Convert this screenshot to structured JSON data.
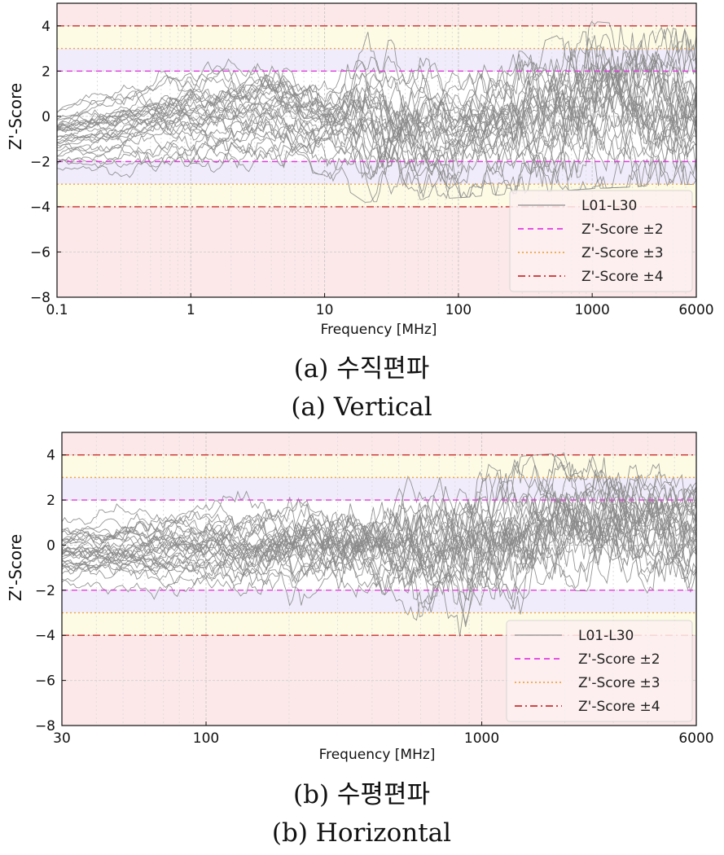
{
  "chart_data": [
    {
      "type": "line",
      "ylabel": "Z'-Score",
      "xlabel": "Frequency [MHz]",
      "xscale": "log",
      "xlim": [
        0.1,
        6000
      ],
      "ylim": [
        -8,
        5
      ],
      "xticks": [
        0.1,
        1,
        10,
        100,
        1000,
        6000
      ],
      "xtick_labels": [
        "0.1",
        "1",
        "10",
        "100",
        "1000",
        "6000"
      ],
      "yticks": [
        4,
        2,
        0,
        -2,
        -4,
        -6,
        -8
      ],
      "ytick_labels": [
        "4",
        "2",
        "0",
        "−2",
        "−4",
        "−6",
        "−8"
      ],
      "grid": true,
      "bands": [
        {
          "from": 4,
          "to": 5,
          "color": "#fce8e8"
        },
        {
          "from": 3,
          "to": 4,
          "color": "#fdfbe4"
        },
        {
          "from": 2,
          "to": 3,
          "color": "#f0ecfb"
        },
        {
          "from": -3,
          "to": -2,
          "color": "#f0ecfb"
        },
        {
          "from": -4,
          "to": -3,
          "color": "#fdfbe4"
        },
        {
          "from": -8,
          "to": -4,
          "color": "#fce8e8"
        }
      ],
      "reference_lines": [
        {
          "values": [
            2,
            -2
          ],
          "color": "#e33be0",
          "dash": "7 5",
          "legend_index": 1
        },
        {
          "values": [
            3,
            -3
          ],
          "color": "#f0a640",
          "dash": "2 3",
          "legend_index": 2
        },
        {
          "values": [
            4,
            -4
          ],
          "color": "#cc2f2f",
          "dash": "9 4 2 4",
          "legend_index": 3
        }
      ],
      "legend_position": "lower-right",
      "legend": [
        {
          "label": "L01-L30",
          "color": "#8a8a8a",
          "style": "solid"
        },
        {
          "label": "Z'-Score ±2",
          "color": "#e33be0",
          "style": "dashed"
        },
        {
          "label": "Z'-Score ±3",
          "color": "#f0a640",
          "style": "dotted"
        },
        {
          "label": "Z'-Score ±4",
          "color": "#cc2f2f",
          "style": "dashdot"
        }
      ],
      "series_summary": {
        "count": 30,
        "color": "#8a8a8a",
        "envelope": [
          {
            "x": 0.1,
            "min": -2.7,
            "max": 1.0
          },
          {
            "x": 0.9,
            "min": -2.7,
            "max": 3.0
          },
          {
            "x": 5,
            "min": -2.3,
            "max": 2.8
          },
          {
            "x": 10,
            "min": -2.6,
            "max": 2.0
          },
          {
            "x": 20,
            "min": -3.8,
            "max": 4.0
          },
          {
            "x": 100,
            "min": -3.6,
            "max": 1.8
          },
          {
            "x": 1000,
            "min": -3.2,
            "max": 4.2
          },
          {
            "x": 6000,
            "min": -3.0,
            "max": 3.8
          }
        ]
      },
      "caption_ko": "(a)  수직편파",
      "caption_en": "(a)  Vertical"
    },
    {
      "type": "line",
      "ylabel": "Z'-Score",
      "xlabel": "Frequency [MHz]",
      "xscale": "log",
      "xlim": [
        30,
        6000
      ],
      "ylim": [
        -8,
        5
      ],
      "xticks": [
        30,
        100,
        1000,
        6000
      ],
      "xtick_labels": [
        "30",
        "100",
        "1000",
        "6000"
      ],
      "yticks": [
        4,
        2,
        0,
        -2,
        -4,
        -6,
        -8
      ],
      "ytick_labels": [
        "4",
        "2",
        "0",
        "−2",
        "−4",
        "−6",
        "−8"
      ],
      "grid": true,
      "bands": [
        {
          "from": 4,
          "to": 5,
          "color": "#fce8e8"
        },
        {
          "from": 3,
          "to": 4,
          "color": "#fdfbe4"
        },
        {
          "from": 2,
          "to": 3,
          "color": "#f0ecfb"
        },
        {
          "from": -3,
          "to": -2,
          "color": "#f0ecfb"
        },
        {
          "from": -4,
          "to": -3,
          "color": "#fdfbe4"
        },
        {
          "from": -8,
          "to": -4,
          "color": "#fce8e8"
        }
      ],
      "reference_lines": [
        {
          "values": [
            2,
            -2
          ],
          "color": "#e33be0",
          "dash": "7 5",
          "legend_index": 1
        },
        {
          "values": [
            3,
            -3
          ],
          "color": "#f0a640",
          "dash": "2 3",
          "legend_index": 2
        },
        {
          "values": [
            4,
            -4
          ],
          "color": "#cc2f2f",
          "dash": "9 4 2 4",
          "legend_index": 3
        }
      ],
      "legend_position": "lower-right",
      "legend": [
        {
          "label": "L01-L30",
          "color": "#8a8a8a",
          "style": "solid"
        },
        {
          "label": "Z'-Score ±2",
          "color": "#e33be0",
          "style": "dashed"
        },
        {
          "label": "Z'-Score ±3",
          "color": "#f0a640",
          "style": "dotted"
        },
        {
          "label": "Z'-Score ±4",
          "color": "#cc2f2f",
          "style": "dashdot"
        }
      ],
      "series_summary": {
        "count": 30,
        "color": "#8a8a8a",
        "envelope": [
          {
            "x": 30,
            "min": -3.1,
            "max": 2.0
          },
          {
            "x": 100,
            "min": -3.2,
            "max": 2.6
          },
          {
            "x": 400,
            "min": -3.5,
            "max": 2.8
          },
          {
            "x": 800,
            "min": -4.6,
            "max": 3.5
          },
          {
            "x": 1000,
            "min": -4.2,
            "max": 3.8
          },
          {
            "x": 2000,
            "min": -2.0,
            "max": 4.1
          },
          {
            "x": 6000,
            "min": -2.2,
            "max": 3.4
          }
        ]
      },
      "caption_ko": "(b)  수평편파",
      "caption_en": "(b)  Horizontal"
    }
  ]
}
